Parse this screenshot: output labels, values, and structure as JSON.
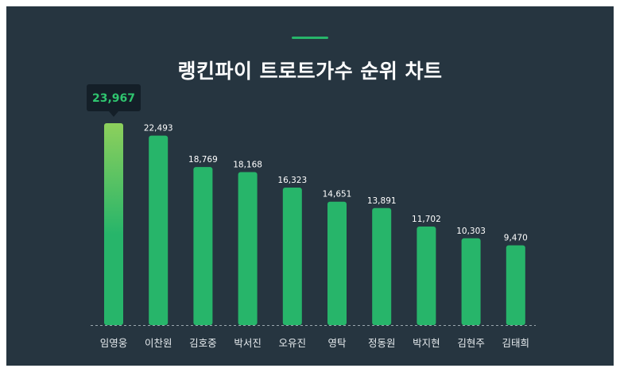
{
  "title": "랭킨파이 트로트가수 순위 차트",
  "colors": {
    "background": "#263540",
    "bar": "#27b56a",
    "highlight_top": "#8dd05c",
    "accent": "#27b56a",
    "tooltip_bg": "#141f28",
    "tooltip_text": "#2fc56f"
  },
  "chart_data": {
    "type": "bar",
    "title": "랭킨파이 트로트가수 순위 차트",
    "categories": [
      "임영웅",
      "이찬원",
      "김호중",
      "박서진",
      "오유진",
      "영탁",
      "정동원",
      "박지현",
      "김현주",
      "김태희"
    ],
    "values": [
      23967,
      22493,
      18769,
      18168,
      16323,
      14651,
      13891,
      11702,
      10303,
      9470
    ],
    "value_labels": [
      "23,967",
      "22,493",
      "18,769",
      "18,168",
      "16,323",
      "14,651",
      "13,891",
      "11,702",
      "10,303",
      "9,470"
    ],
    "xlabel": "",
    "ylabel": "",
    "ylim": [
      0,
      23967
    ],
    "grid": false,
    "highlighted_index": 0
  }
}
